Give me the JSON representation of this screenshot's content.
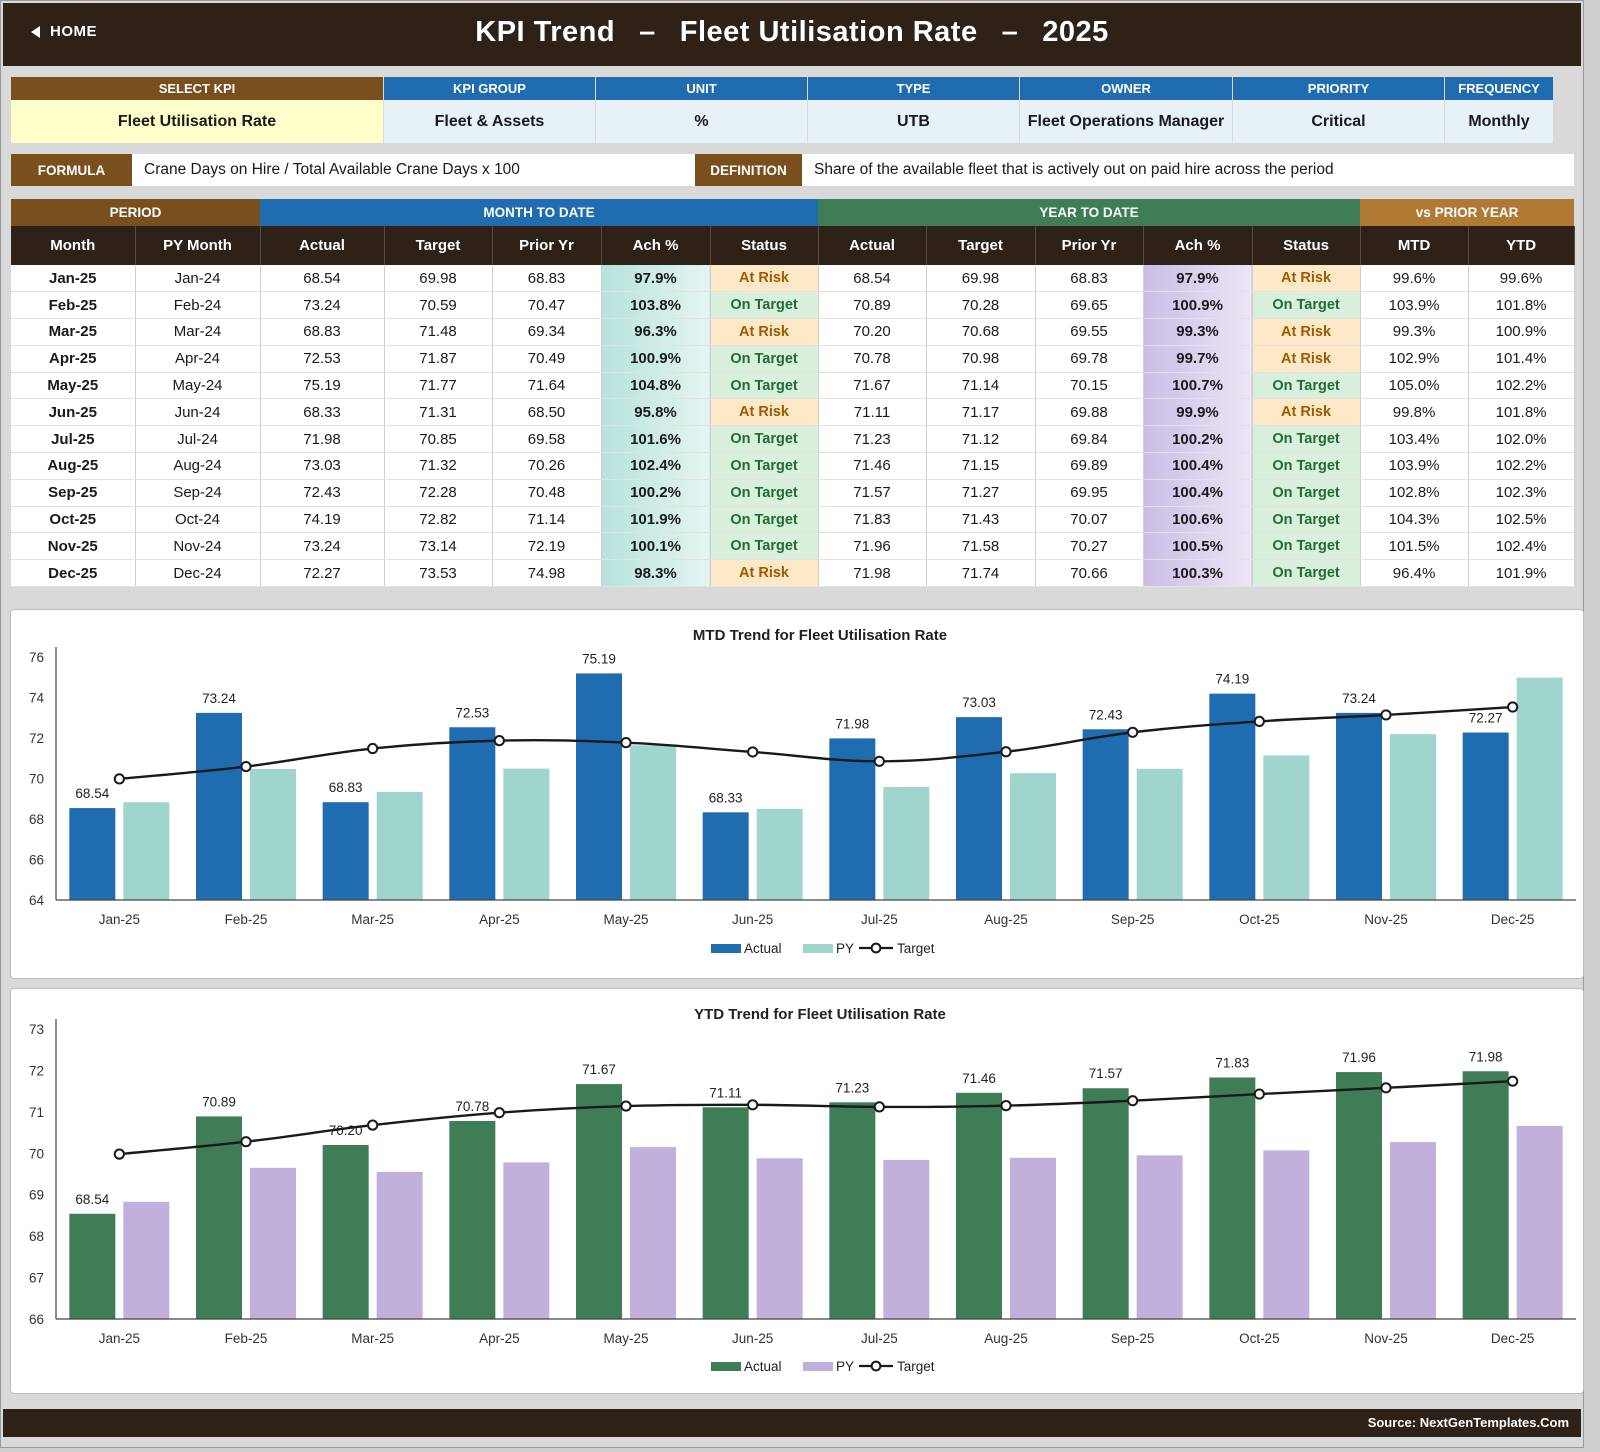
{
  "header": {
    "home_label": "HOME",
    "title_part1": "KPI Trend",
    "title_sep": "–",
    "title_kpi": "Fleet Utilisation Rate",
    "title_year": "2025"
  },
  "info": [
    {
      "label": "SELECT KPI",
      "value": "Fleet Utilisation Rate"
    },
    {
      "label": "KPI GROUP",
      "value": "Fleet & Assets"
    },
    {
      "label": "UNIT",
      "value": "%"
    },
    {
      "label": "TYPE",
      "value": "UTB"
    },
    {
      "label": "OWNER",
      "value": "Fleet Operations Manager"
    },
    {
      "label": "PRIORITY",
      "value": "Critical"
    },
    {
      "label": "FREQUENCY",
      "value": "Monthly"
    }
  ],
  "formula": {
    "formula_label": "FORMULA",
    "formula_text": "Crane Days on Hire / Total Available Crane Days x 100",
    "definition_label": "DEFINITION",
    "definition_text": "Share of the available fleet that is actively out on paid hire across the period"
  },
  "table": {
    "groups": {
      "period": "PERIOD",
      "mtd": "MONTH TO DATE",
      "ytd": "YEAR TO DATE",
      "vpy": "vs PRIOR YEAR"
    },
    "columns": [
      "Month",
      "PY Month",
      "Actual",
      "Target",
      "Prior Yr",
      "Ach %",
      "Status",
      "Actual",
      "Target",
      "Prior Yr",
      "Ach %",
      "Status",
      "MTD",
      "YTD"
    ],
    "rows": [
      [
        "Jan-25",
        "Jan-24",
        "68.54",
        "69.98",
        "68.83",
        "97.9%",
        "At Risk",
        "68.54",
        "69.98",
        "68.83",
        "97.9%",
        "At Risk",
        "99.6%",
        "99.6%"
      ],
      [
        "Feb-25",
        "Feb-24",
        "73.24",
        "70.59",
        "70.47",
        "103.8%",
        "On Target",
        "70.89",
        "70.28",
        "69.65",
        "100.9%",
        "On Target",
        "103.9%",
        "101.8%"
      ],
      [
        "Mar-25",
        "Mar-24",
        "68.83",
        "71.48",
        "69.34",
        "96.3%",
        "At Risk",
        "70.20",
        "70.68",
        "69.55",
        "99.3%",
        "At Risk",
        "99.3%",
        "100.9%"
      ],
      [
        "Apr-25",
        "Apr-24",
        "72.53",
        "71.87",
        "70.49",
        "100.9%",
        "On Target",
        "70.78",
        "70.98",
        "69.78",
        "99.7%",
        "At Risk",
        "102.9%",
        "101.4%"
      ],
      [
        "May-25",
        "May-24",
        "75.19",
        "71.77",
        "71.64",
        "104.8%",
        "On Target",
        "71.67",
        "71.14",
        "70.15",
        "100.7%",
        "On Target",
        "105.0%",
        "102.2%"
      ],
      [
        "Jun-25",
        "Jun-24",
        "68.33",
        "71.31",
        "68.50",
        "95.8%",
        "At Risk",
        "71.11",
        "71.17",
        "69.88",
        "99.9%",
        "At Risk",
        "99.8%",
        "101.8%"
      ],
      [
        "Jul-25",
        "Jul-24",
        "71.98",
        "70.85",
        "69.58",
        "101.6%",
        "On Target",
        "71.23",
        "71.12",
        "69.84",
        "100.2%",
        "On Target",
        "103.4%",
        "102.0%"
      ],
      [
        "Aug-25",
        "Aug-24",
        "73.03",
        "71.32",
        "70.26",
        "102.4%",
        "On Target",
        "71.46",
        "71.15",
        "69.89",
        "100.4%",
        "On Target",
        "103.9%",
        "102.2%"
      ],
      [
        "Sep-25",
        "Sep-24",
        "72.43",
        "72.28",
        "70.48",
        "100.2%",
        "On Target",
        "71.57",
        "71.27",
        "69.95",
        "100.4%",
        "On Target",
        "102.8%",
        "102.3%"
      ],
      [
        "Oct-25",
        "Oct-24",
        "74.19",
        "72.82",
        "71.14",
        "101.9%",
        "On Target",
        "71.83",
        "71.43",
        "70.07",
        "100.6%",
        "On Target",
        "104.3%",
        "102.5%"
      ],
      [
        "Nov-25",
        "Nov-24",
        "73.24",
        "73.14",
        "72.19",
        "100.1%",
        "On Target",
        "71.96",
        "71.58",
        "70.27",
        "100.5%",
        "On Target",
        "101.5%",
        "102.4%"
      ],
      [
        "Dec-25",
        "Dec-24",
        "72.27",
        "73.53",
        "74.98",
        "98.3%",
        "At Risk",
        "71.98",
        "71.74",
        "70.66",
        "100.3%",
        "On Target",
        "96.4%",
        "101.9%"
      ]
    ]
  },
  "chart_data": [
    {
      "type": "bar",
      "title": "MTD Trend for Fleet Utilisation Rate",
      "categories": [
        "Jan-25",
        "Feb-25",
        "Mar-25",
        "Apr-25",
        "May-25",
        "Jun-25",
        "Jul-25",
        "Aug-25",
        "Sep-25",
        "Oct-25",
        "Nov-25",
        "Dec-25"
      ],
      "ylim": [
        64,
        76
      ],
      "yticks": [
        64,
        66,
        68,
        70,
        72,
        74,
        76
      ],
      "series": [
        {
          "name": "Actual",
          "kind": "bar",
          "color": "#1f6cb0",
          "values": [
            68.54,
            73.24,
            68.83,
            72.53,
            75.19,
            68.33,
            71.98,
            73.03,
            72.43,
            74.19,
            73.24,
            72.27
          ],
          "labels": [
            "68.54",
            "73.24",
            "68.83",
            "72.53",
            "75.19",
            "68.33",
            "71.98",
            "73.03",
            "72.43",
            "74.19",
            "73.24",
            "72.27"
          ]
        },
        {
          "name": "PY",
          "kind": "bar",
          "color": "#9fd5cc",
          "values": [
            68.83,
            70.47,
            69.34,
            70.49,
            71.64,
            68.5,
            69.58,
            70.26,
            70.48,
            71.14,
            72.19,
            74.98
          ]
        },
        {
          "name": "Target",
          "kind": "line",
          "color": "#1a1a1a",
          "values": [
            69.98,
            70.59,
            71.48,
            71.87,
            71.77,
            71.31,
            70.85,
            71.32,
            72.28,
            72.82,
            73.14,
            73.53
          ]
        }
      ],
      "legend_position": "bottom"
    },
    {
      "type": "bar",
      "title": "YTD Trend for Fleet Utilisation Rate",
      "categories": [
        "Jan-25",
        "Feb-25",
        "Mar-25",
        "Apr-25",
        "May-25",
        "Jun-25",
        "Jul-25",
        "Aug-25",
        "Sep-25",
        "Oct-25",
        "Nov-25",
        "Dec-25"
      ],
      "ylim": [
        66,
        73
      ],
      "yticks": [
        66,
        67,
        68,
        69,
        70,
        71,
        72,
        73
      ],
      "series": [
        {
          "name": "Actual",
          "kind": "bar",
          "color": "#3f7d56",
          "values": [
            68.54,
            70.89,
            70.2,
            70.78,
            71.67,
            71.11,
            71.23,
            71.46,
            71.57,
            71.83,
            71.96,
            71.98
          ],
          "labels": [
            "68.54",
            "70.89",
            "70.20",
            "70.78",
            "71.67",
            "71.11",
            "71.23",
            "71.46",
            "71.57",
            "71.83",
            "71.96",
            "71.98"
          ]
        },
        {
          "name": "PY",
          "kind": "bar",
          "color": "#c2b0dc",
          "values": [
            68.83,
            69.65,
            69.55,
            69.78,
            70.15,
            69.88,
            69.84,
            69.89,
            69.95,
            70.07,
            70.27,
            70.66
          ]
        },
        {
          "name": "Target",
          "kind": "line",
          "color": "#1a1a1a",
          "values": [
            69.98,
            70.28,
            70.68,
            70.98,
            71.14,
            71.17,
            71.12,
            71.15,
            71.27,
            71.43,
            71.58,
            71.74
          ]
        }
      ],
      "legend_position": "bottom"
    }
  ],
  "footer": {
    "source": "Source: NextGenTemplates.Com"
  }
}
